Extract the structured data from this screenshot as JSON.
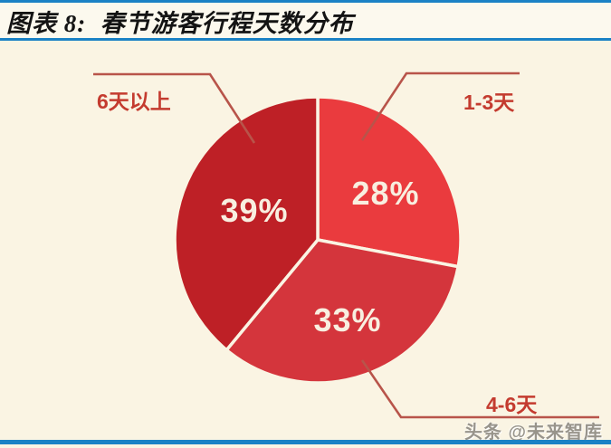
{
  "header": {
    "title": "图表 8:  春节游客行程天数分布"
  },
  "chart_data": {
    "type": "pie",
    "title": "春节游客行程天数分布",
    "start_angle_deg": -90,
    "direction": "clockwise",
    "legend_position": "none (leader-line callout labels)",
    "slices": [
      {
        "label": "1-3天",
        "value": 28,
        "value_label": "28%",
        "color": "#EA3B3E"
      },
      {
        "label": "4-6天",
        "value": 33,
        "value_label": "33%",
        "color": "#D4353C"
      },
      {
        "label": "6天以上",
        "value": 39,
        "value_label": "39%",
        "color": "#BE2026"
      }
    ]
  },
  "watermark": {
    "text": "头条 @未来智库"
  },
  "colors": {
    "background": "#FAF4E3",
    "header_background": "#FCF9EE",
    "accent_blue": "#1B82C5",
    "category_label_red": "#C43B2F",
    "leader_line_red": "#B8544A",
    "slice_value_text": "#F8EFE0",
    "title_text": "#141414",
    "watermark_gray": "#98948B"
  }
}
